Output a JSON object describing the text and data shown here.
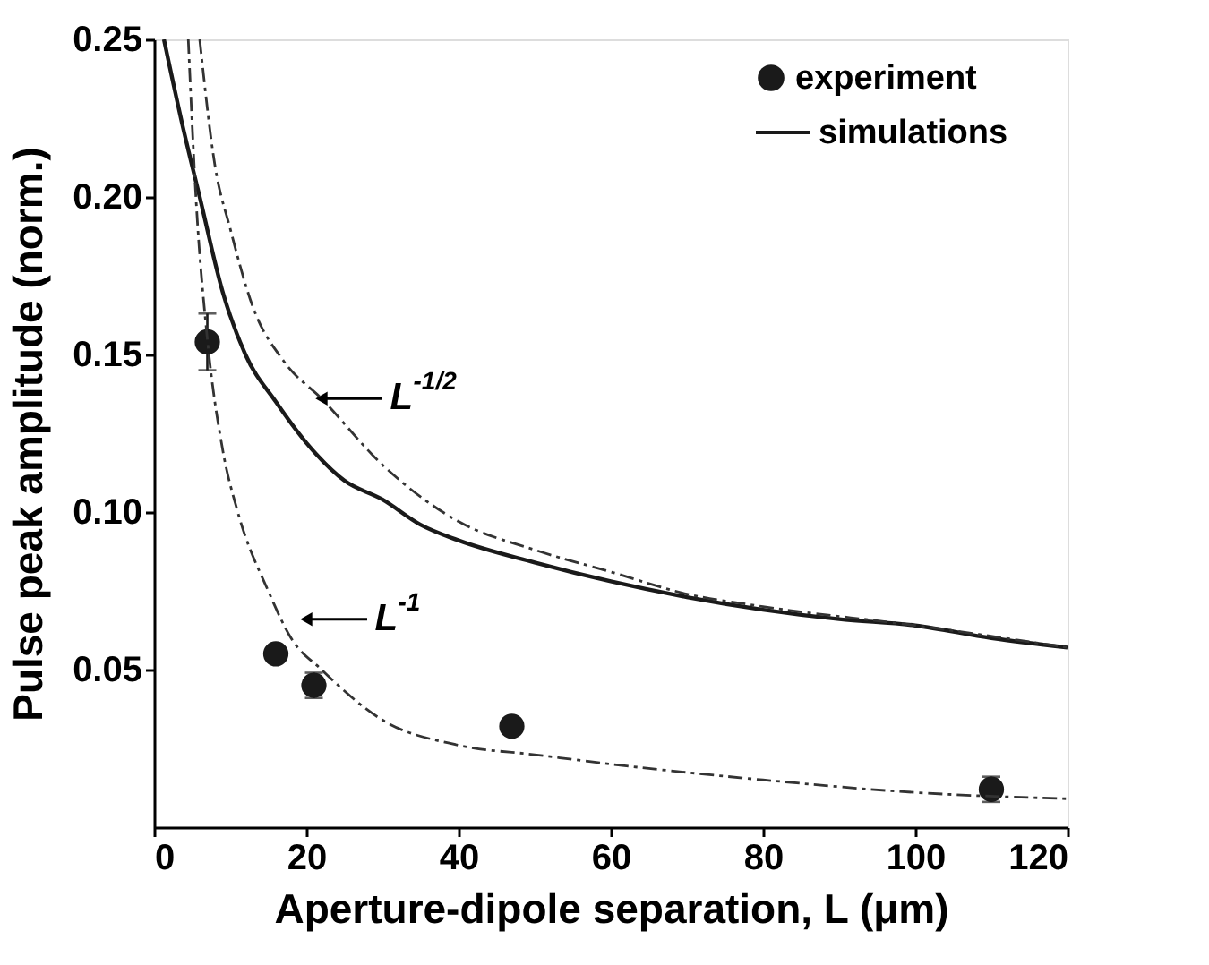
{
  "chart_data": {
    "type": "scatter",
    "xlabel": "Aperture-dipole separation, L (μm)",
    "ylabel": "Pulse peak amplitude (norm.)",
    "xlim": [
      0,
      120
    ],
    "ylim": [
      0,
      0.25
    ],
    "xticks": [
      0,
      20,
      40,
      60,
      80,
      100,
      120
    ],
    "yticks": [
      0.05,
      {
        "value": 0.1,
        "label": "0.10"
      },
      0.15,
      {
        "value": 0.2,
        "label": "0.20"
      },
      0.25
    ],
    "grid": false,
    "legend": "top right",
    "series": [
      {
        "name": "experiment",
        "type": "scatter",
        "marker": "circle",
        "color": "#1a1a1a",
        "x": [
          7,
          16,
          21,
          47,
          110
        ],
        "values": [
          0.154,
          0.055,
          0.045,
          0.032,
          0.012
        ],
        "errors": [
          0.009,
          0.002,
          0.004,
          0.002,
          0.004
        ]
      },
      {
        "name": "simulations",
        "type": "line",
        "line_style": "solid",
        "color": "#1a1a1a",
        "x": [
          1.3,
          4,
          6,
          9,
          12,
          16,
          20,
          25,
          30,
          35,
          40,
          50,
          60,
          70,
          80,
          90,
          100,
          110,
          120
        ],
        "values": [
          0.25,
          0.22,
          0.2,
          0.17,
          0.15,
          0.135,
          0.122,
          0.11,
          0.104,
          0.096,
          0.091,
          0.084,
          0.078,
          0.073,
          0.069,
          0.066,
          0.064,
          0.06,
          0.057
        ]
      },
      {
        "type": "line",
        "line_style": "dashed",
        "color": "#333333",
        "x": [
          6,
          8,
          10,
          13,
          17,
          22,
          30,
          40,
          50,
          60,
          70,
          80,
          100,
          120
        ],
        "values": [
          0.25,
          0.21,
          0.19,
          0.165,
          0.148,
          0.136,
          0.115,
          0.097,
          0.088,
          0.081,
          0.074,
          0.07,
          0.064,
          0.057
        ]
      },
      {
        "type": "line",
        "line_style": "dashed",
        "color": "#333333",
        "x": [
          4.5,
          5.5,
          7,
          9,
          11,
          15,
          18,
          22,
          30,
          40,
          50,
          60,
          80,
          100,
          120
        ],
        "values": [
          0.25,
          0.2,
          0.155,
          0.12,
          0.1,
          0.075,
          0.06,
          0.05,
          0.034,
          0.026,
          0.023,
          0.02,
          0.015,
          0.011,
          0.009
        ]
      }
    ],
    "annotations": [
      {
        "text": "L$^{-1/2}$",
        "x": 22,
        "y": 0.136
      },
      {
        "text": "L$^{-1}$",
        "x": 20,
        "y": 0.066
      }
    ]
  }
}
